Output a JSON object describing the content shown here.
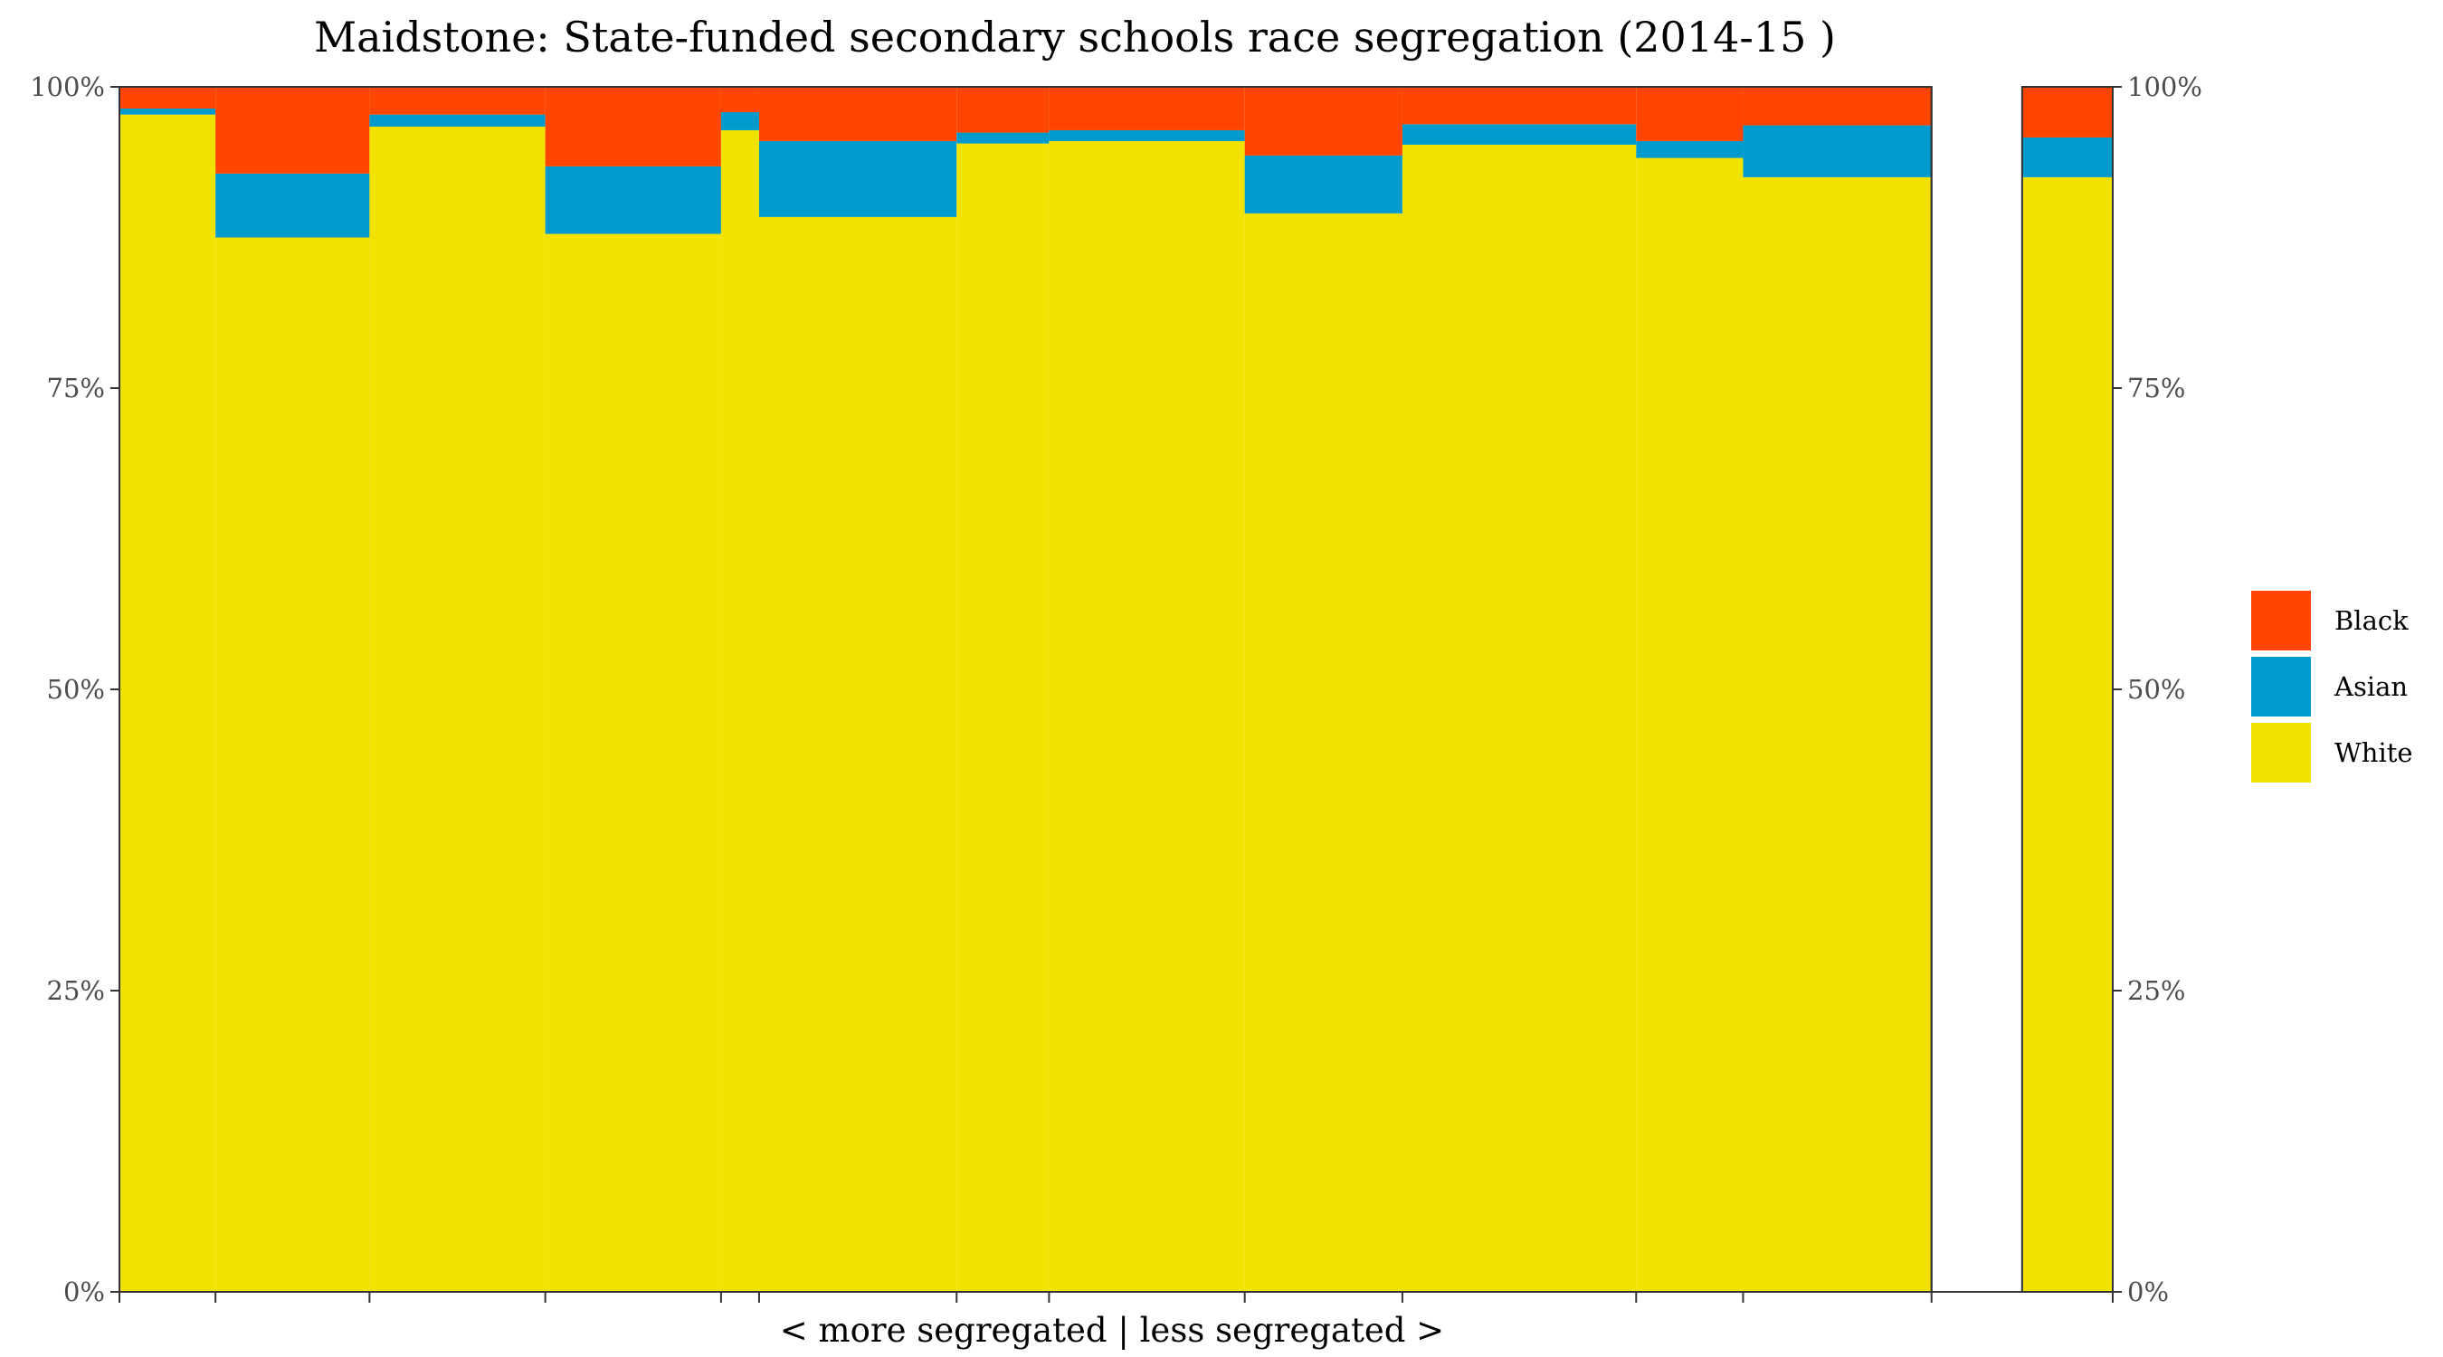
{
  "chart_data": {
    "type": "bar",
    "subtype": "stacked-variable-width (marimekko)",
    "title": "Maidstone: State-funded secondary schools race segregation (2014-15 )",
    "xlabel": "< more segregated | less segregated >",
    "ylabel": "",
    "ylim": [
      0,
      1
    ],
    "y_ticks": [
      "0%",
      "25%",
      "50%",
      "75%",
      "100%"
    ],
    "y_tick_values": [
      0,
      0.25,
      0.5,
      0.75,
      1.0
    ],
    "secondary_y_axis": true,
    "grid": false,
    "legend_position": "right",
    "series_order": [
      "White",
      "Asian",
      "Black"
    ],
    "legend": [
      {
        "name": "Black",
        "color": "#FF4500"
      },
      {
        "name": "Asian",
        "color": "#009ACD"
      },
      {
        "name": "White",
        "color": "#F2E200"
      }
    ],
    "x_domain": [
      0,
      1.1
    ],
    "schools": [
      {
        "x_start": 0.0,
        "x_end": 0.053,
        "White": 0.977,
        "Asian": 0.005,
        "Black": 0.018
      },
      {
        "x_start": 0.053,
        "x_end": 0.138,
        "White": 0.875,
        "Asian": 0.053,
        "Black": 0.072
      },
      {
        "x_start": 0.138,
        "x_end": 0.235,
        "White": 0.967,
        "Asian": 0.01,
        "Black": 0.023
      },
      {
        "x_start": 0.235,
        "x_end": 0.332,
        "White": 0.878,
        "Asian": 0.056,
        "Black": 0.066
      },
      {
        "x_start": 0.332,
        "x_end": 0.353,
        "White": 0.964,
        "Asian": 0.015,
        "Black": 0.021
      },
      {
        "x_start": 0.353,
        "x_end": 0.462,
        "White": 0.892,
        "Asian": 0.063,
        "Black": 0.045
      },
      {
        "x_start": 0.462,
        "x_end": 0.513,
        "White": 0.953,
        "Asian": 0.009,
        "Black": 0.038
      },
      {
        "x_start": 0.513,
        "x_end": 0.621,
        "White": 0.955,
        "Asian": 0.009,
        "Black": 0.036
      },
      {
        "x_start": 0.621,
        "x_end": 0.708,
        "White": 0.895,
        "Asian": 0.048,
        "Black": 0.057
      },
      {
        "x_start": 0.708,
        "x_end": 0.837,
        "White": 0.952,
        "Asian": 0.017,
        "Black": 0.031
      },
      {
        "x_start": 0.837,
        "x_end": 0.896,
        "White": 0.941,
        "Asian": 0.014,
        "Black": 0.045
      },
      {
        "x_start": 0.896,
        "x_end": 1.0,
        "White": 0.925,
        "Asian": 0.043,
        "Black": 0.032
      }
    ],
    "summary_bar": {
      "x_start": 1.05,
      "x_end": 1.1,
      "White": 0.925,
      "Asian": 0.033,
      "Black": 0.042
    }
  }
}
